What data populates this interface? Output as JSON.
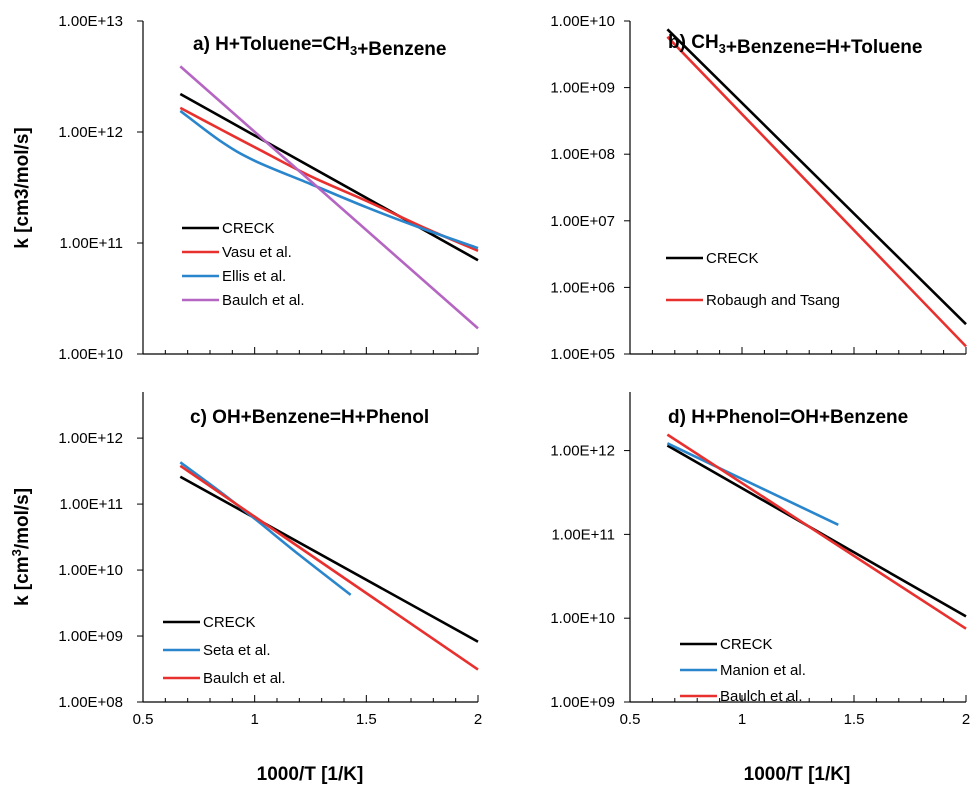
{
  "figure": {
    "shared_xlabel": "1000/T [1/K]",
    "shared_ylabel": "k [cm3/mol/s]",
    "x_ticks": [
      "0.5",
      "1",
      "1.5",
      "2"
    ]
  },
  "chart_data": [
    {
      "type": "line",
      "title": "a) H+Toluene=CH3+Benzene",
      "yscale": "log",
      "xlim": [
        0.5,
        2.0
      ],
      "ylim": [
        10000000000.0,
        10000000000000.0
      ],
      "ytick_labels": [
        "1.00E+10",
        "1.00E+11",
        "1.00E+12",
        "1.00E+13"
      ],
      "legend_position": "lower-left",
      "series": [
        {
          "name": "CRECK",
          "color": "#000000",
          "x": [
            0.667,
            2.0
          ],
          "y": [
            2200000000000.0,
            70000000000.0
          ]
        },
        {
          "name": "Vasu et al.",
          "color": "#e8312f",
          "x": [
            0.667,
            0.85,
            1.0,
            1.25,
            1.5,
            1.75,
            2.0
          ],
          "y": [
            1650000000000.0,
            1050000000000.0,
            730000000000.0,
            400000000000.0,
            240000000000.0,
            140000000000.0,
            85000000000.0
          ]
        },
        {
          "name": "Ellis et al.",
          "color": "#2a86cc",
          "x": [
            0.667,
            0.85,
            1.0,
            1.25,
            1.5,
            1.75,
            2.0
          ],
          "y": [
            1550000000000.0,
            820000000000.0,
            550000000000.0,
            340000000000.0,
            210000000000.0,
            135000000000.0,
            90000000000.0
          ]
        },
        {
          "name": "Baulch et al.",
          "color": "#b565c2",
          "x": [
            0.667,
            2.0
          ],
          "y": [
            3900000000000.0,
            17000000000.0
          ]
        }
      ]
    },
    {
      "type": "line",
      "title": "b) CH3+Benzene=H+Toluene",
      "yscale": "log",
      "xlim": [
        0.5,
        2.0
      ],
      "ylim": [
        100000.0,
        10000000000.0
      ],
      "ytick_labels": [
        "1.00E+05",
        "1.00E+06",
        "1.00E+07",
        "1.00E+08",
        "1.00E+09",
        "1.00E+10"
      ],
      "legend_position": "lower-left",
      "series": [
        {
          "name": "CRECK",
          "color": "#000000",
          "x": [
            0.667,
            2.0
          ],
          "y": [
            7500000000.0,
            280000.0
          ]
        },
        {
          "name": "Robaugh and Tsang",
          "color": "#e8312f",
          "x": [
            0.667,
            2.0
          ],
          "y": [
            5800000000.0,
            130000.0
          ]
        }
      ]
    },
    {
      "type": "line",
      "title": "c) OH+Benzene=H+Phenol",
      "yscale": "log",
      "xlim": [
        0.5,
        2.0
      ],
      "ylim": [
        100000000.0,
        5000000000000.0
      ],
      "ytick_labels": [
        "1.00E+08",
        "1.00E+09",
        "1.00E+10",
        "1.00E+11",
        "1.00E+12"
      ],
      "legend_position": "lower-left",
      "series": [
        {
          "name": "CRECK",
          "color": "#000000",
          "x": [
            0.667,
            2.0
          ],
          "y": [
            260000000000.0,
            820000000.0
          ]
        },
        {
          "name": "Seta et al.",
          "color": "#2a86cc",
          "x": [
            0.667,
            0.85,
            1.0,
            1.2,
            1.43
          ],
          "y": [
            430000000000.0,
            150000000000.0,
            60000000000.0,
            17000000000.0,
            4200000000.0
          ]
        },
        {
          "name": "Baulch et al.",
          "color": "#e8312f",
          "x": [
            0.667,
            2.0
          ],
          "y": [
            380000000000.0,
            310000000.0
          ]
        }
      ]
    },
    {
      "type": "line",
      "title": "d) H+Phenol=OH+Benzene",
      "yscale": "log",
      "xlim": [
        0.5,
        2.0
      ],
      "ylim": [
        1000000000.0,
        5000000000000.0
      ],
      "ytick_labels": [
        "1.00E+09",
        "1.00E+10",
        "1.00E+11",
        "1.00E+12"
      ],
      "legend_position": "lower-left",
      "series": [
        {
          "name": "CRECK",
          "color": "#000000",
          "x": [
            0.667,
            2.0
          ],
          "y": [
            1150000000000.0,
            10500000000.0
          ]
        },
        {
          "name": "Manion et al.",
          "color": "#2a86cc",
          "x": [
            0.667,
            1.43
          ],
          "y": [
            1220000000000.0,
            130000000000.0
          ]
        },
        {
          "name": "Baulch et al.",
          "color": "#e8312f",
          "x": [
            0.667,
            2.0
          ],
          "y": [
            1550000000000.0,
            7500000000.0
          ]
        }
      ]
    }
  ]
}
